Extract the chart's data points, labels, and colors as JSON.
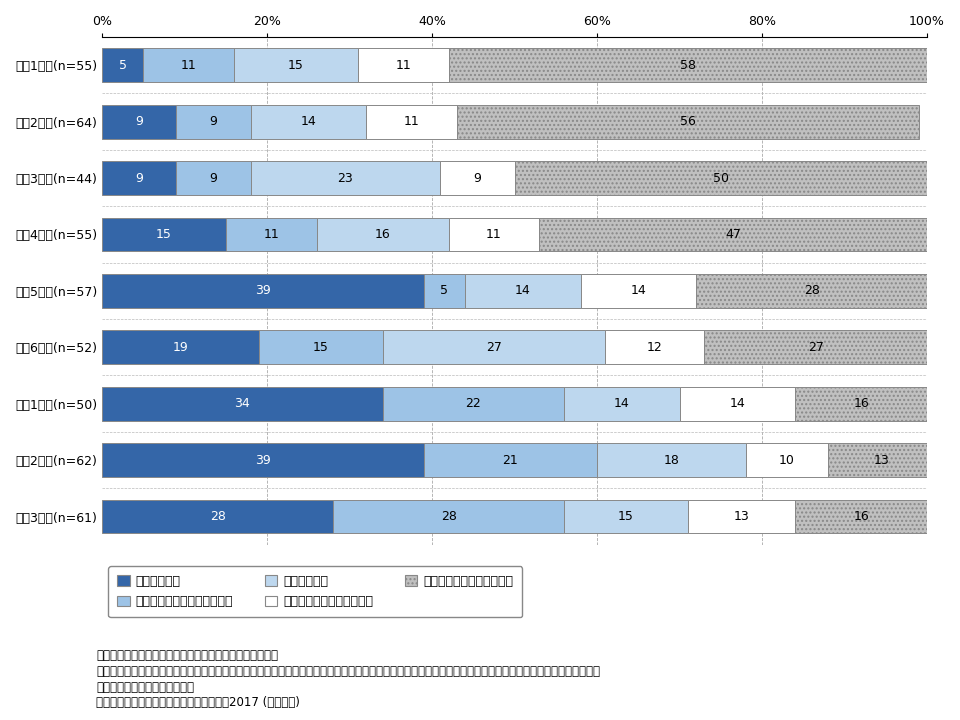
{
  "categories": [
    "小学1年生(n=55)",
    "小学2年生(n=64)",
    "小学3年生(n=44)",
    "小学4年生(n=55)",
    "小学5年生(n=57)",
    "小学6年生(n=52)",
    "中学1年生(n=50)",
    "中学2年生(n=62)",
    "中学3年生(n=61)"
  ],
  "series": {
    "s1": [
      5,
      9,
      9,
      15,
      39,
      19,
      34,
      39,
      28
    ],
    "s2": [
      11,
      9,
      9,
      11,
      5,
      15,
      22,
      21,
      28
    ],
    "s3": [
      15,
      14,
      23,
      16,
      14,
      27,
      14,
      18,
      15
    ],
    "s4": [
      11,
      11,
      9,
      11,
      14,
      12,
      14,
      10,
      13
    ],
    "s5": [
      58,
      56,
      50,
      47,
      28,
      27,
      16,
      13,
      16
    ]
  },
  "colors": {
    "s1": "#3466a8",
    "s2": "#9dc3e6",
    "s3": "#bdd7ee",
    "s4": "#ffffff",
    "s4_edge": "#888888",
    "s5": "#c0c0c0",
    "s5_hatch": "..."
  },
  "legend_labels": [
    "利用している",
    "利用可能だが利用していない",
    "利用できない",
    "わからない・答えたくない",
    "スマホ・ケータイ利用なし"
  ],
  "notes_line1": "注１：関東１都６県在住の小中学生を持つ保護者が回答。",
  "notes_line2": "注２：「あなたのお子様のスマホ・ケータイはフィルタリングや利用制限などの、ペアレンタル・コントロール・サービスを利用できますか。また、実際に利用",
  "notes_line3": "　　していますか。」と質問。",
  "notes_line4": "出所：子どものケータイ利用に関する調査2017 (訪問面接)",
  "bar_height": 0.6,
  "figsize": [
    9.6,
    7.2
  ],
  "dpi": 100,
  "text_fontsize": 9,
  "label_fontsize": 9,
  "note_fontsize": 8.5
}
